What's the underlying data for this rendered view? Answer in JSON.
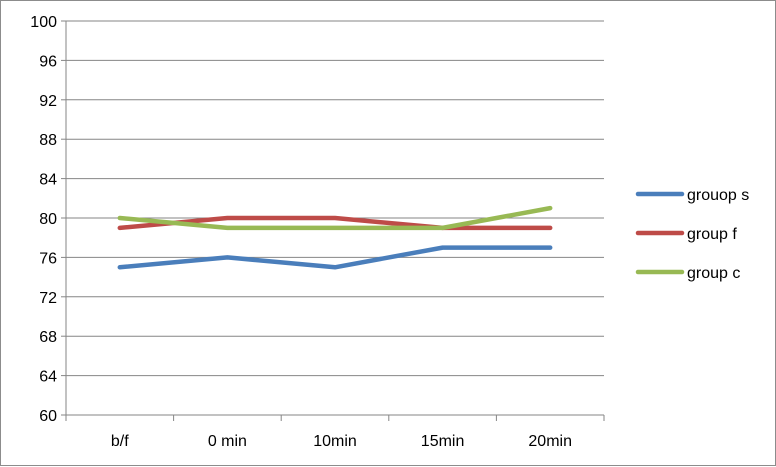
{
  "chart_data": {
    "type": "line",
    "title": "",
    "xlabel": "",
    "ylabel": "",
    "categories": [
      "b/f",
      "0 min",
      "10min",
      "15min",
      "20min"
    ],
    "ylim": [
      60,
      100
    ],
    "yticks": [
      60,
      64,
      68,
      72,
      76,
      80,
      84,
      88,
      92,
      96,
      100
    ],
    "grid": "horizontal",
    "legend_position": "right",
    "series": [
      {
        "name": "grouop s",
        "color": "#4a7ebb",
        "values": [
          75,
          76,
          75,
          77,
          77
        ]
      },
      {
        "name": "group f",
        "color": "#be4b48",
        "values": [
          79,
          80,
          80,
          79,
          79
        ]
      },
      {
        "name": "group c",
        "color": "#98b954",
        "values": [
          80,
          79,
          79,
          79,
          81
        ]
      }
    ]
  }
}
